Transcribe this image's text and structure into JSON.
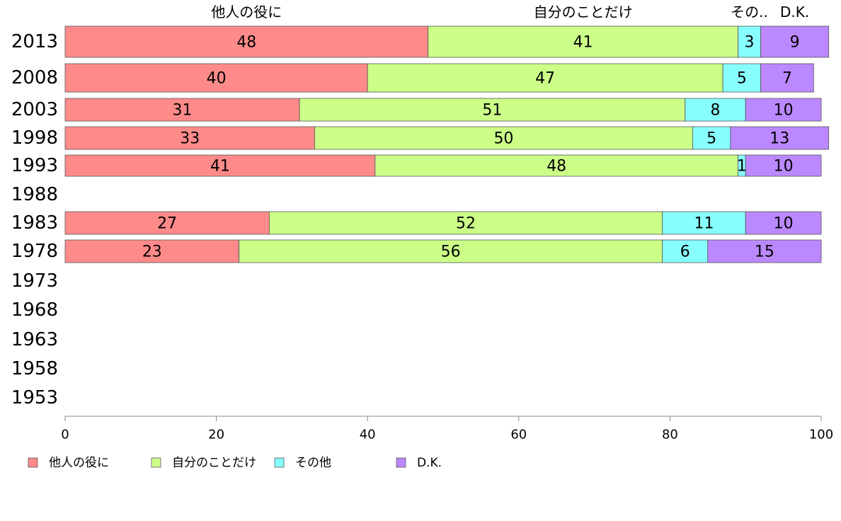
{
  "chart_data": {
    "type": "bar",
    "orientation": "horizontal",
    "stacked": true,
    "categories": [
      "2013",
      "2008",
      "2003",
      "1998",
      "1993",
      "1988",
      "1983",
      "1978",
      "1973",
      "1968",
      "1963",
      "1958",
      "1953"
    ],
    "series": [
      {
        "name": "他人の役に",
        "color": "#ff8a8a",
        "values": [
          48,
          40,
          31,
          33,
          41,
          null,
          27,
          23,
          null,
          null,
          null,
          null,
          null
        ]
      },
      {
        "name": "自分のことだけ",
        "color": "#ccff88",
        "values": [
          41,
          47,
          51,
          50,
          48,
          null,
          52,
          56,
          null,
          null,
          null,
          null,
          null
        ]
      },
      {
        "name": "その他",
        "color": "#88ffff",
        "values": [
          3,
          5,
          8,
          5,
          1,
          null,
          11,
          6,
          null,
          null,
          null,
          null,
          null
        ]
      },
      {
        "name": "D.K.",
        "color": "#bb88ff",
        "values": [
          9,
          7,
          10,
          13,
          10,
          null,
          10,
          15,
          null,
          null,
          null,
          null,
          null
        ]
      }
    ],
    "top_labels": [
      "他人の役に",
      "自分のことだけ",
      "その..",
      "D.K."
    ],
    "xlim": [
      0,
      100
    ],
    "xticks": [
      0,
      20,
      40,
      60,
      80,
      100
    ],
    "legend_position": "bottom",
    "grid": false
  }
}
